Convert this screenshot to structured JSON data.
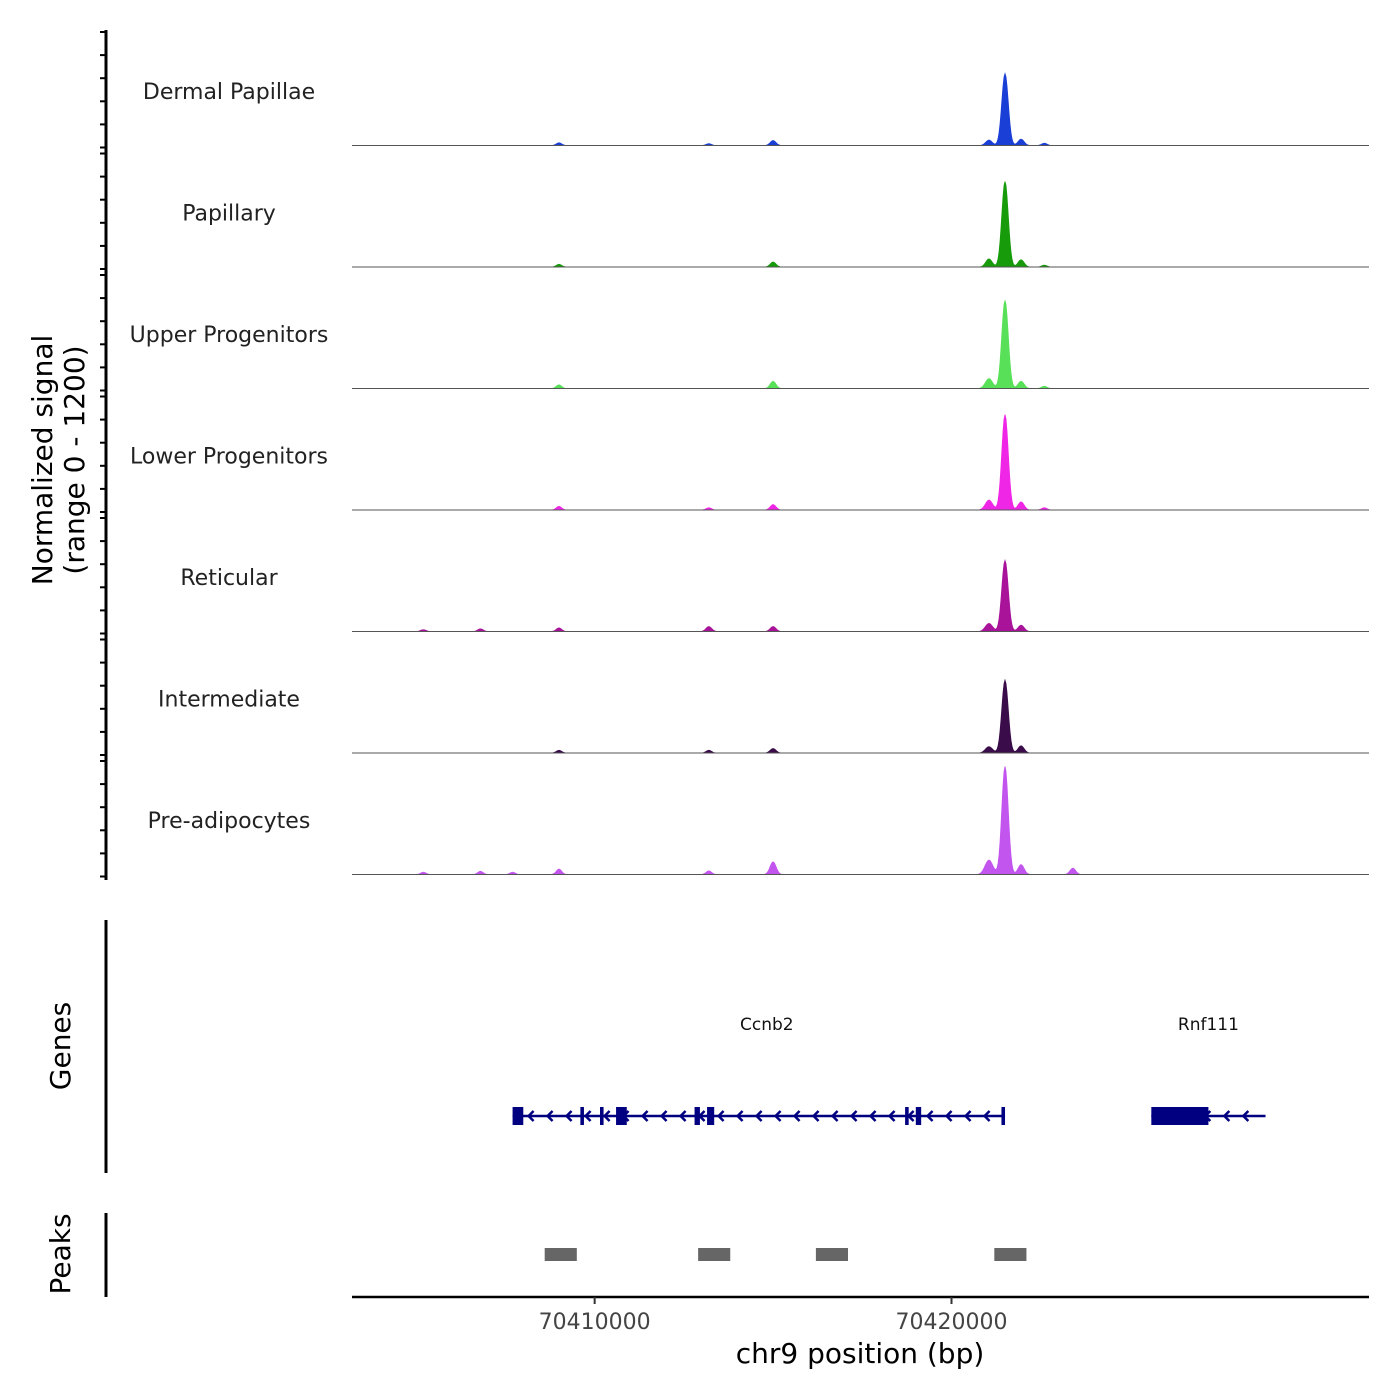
{
  "chart_data": {
    "type": "area",
    "title": "",
    "ylabel_line1": "Normalized signal",
    "ylabel_line2": "(range 0 - 1200)",
    "y_range": [
      0,
      1200
    ],
    "xlabel": "chr9 position (bp)",
    "x_range": [
      70403200,
      70431700
    ],
    "x_ticks": [
      70410000,
      70420000
    ],
    "x_tick_labels": [
      "70410000",
      "70420000"
    ],
    "tracks": [
      {
        "name": "Dermal Papillae",
        "color": "#1a3fd6",
        "peaks": [
          [
            70421500,
            800,
            180
          ],
          [
            70421050,
            60,
            180
          ],
          [
            70421950,
            70,
            170
          ],
          [
            70415000,
            55,
            160
          ],
          [
            70409000,
            30,
            150
          ],
          [
            70413200,
            20,
            150
          ],
          [
            70422600,
            25,
            150
          ]
        ]
      },
      {
        "name": "Papillary",
        "color": "#179b0b",
        "peaks": [
          [
            70421500,
            950,
            180
          ],
          [
            70421050,
            90,
            180
          ],
          [
            70421950,
            80,
            170
          ],
          [
            70415000,
            55,
            160
          ],
          [
            70409000,
            30,
            150
          ],
          [
            70422600,
            20,
            150
          ]
        ]
      },
      {
        "name": "Upper Progenitors",
        "color": "#59e059",
        "peaks": [
          [
            70421500,
            980,
            180
          ],
          [
            70421050,
            110,
            200
          ],
          [
            70421950,
            80,
            170
          ],
          [
            70415000,
            80,
            160
          ],
          [
            70409000,
            40,
            150
          ],
          [
            70422600,
            25,
            150
          ]
        ]
      },
      {
        "name": "Lower Progenitors",
        "color": "#f026e6",
        "peaks": [
          [
            70421500,
            1060,
            180
          ],
          [
            70421050,
            110,
            200
          ],
          [
            70421950,
            90,
            170
          ],
          [
            70415000,
            60,
            160
          ],
          [
            70409000,
            40,
            150
          ],
          [
            70413200,
            25,
            150
          ],
          [
            70422600,
            25,
            150
          ]
        ]
      },
      {
        "name": "Reticular",
        "color": "#a8139a",
        "peaks": [
          [
            70421500,
            790,
            180
          ],
          [
            70421050,
            90,
            200
          ],
          [
            70421950,
            70,
            170
          ],
          [
            70415000,
            55,
            160
          ],
          [
            70409000,
            40,
            150
          ],
          [
            70413200,
            55,
            160
          ],
          [
            70406800,
            30,
            150
          ],
          [
            70405200,
            20,
            150
          ]
        ]
      },
      {
        "name": "Intermediate",
        "color": "#3a0d4a",
        "peaks": [
          [
            70421500,
            810,
            180
          ],
          [
            70421050,
            70,
            200
          ],
          [
            70421950,
            80,
            170
          ],
          [
            70415000,
            50,
            160
          ],
          [
            70409000,
            30,
            150
          ],
          [
            70413200,
            30,
            150
          ]
        ]
      },
      {
        "name": "Pre-adipocytes",
        "color": "#c355ef",
        "peaks": [
          [
            70421500,
            1200,
            180
          ],
          [
            70421050,
            160,
            220
          ],
          [
            70421950,
            110,
            170
          ],
          [
            70415000,
            140,
            170
          ],
          [
            70409000,
            60,
            150
          ],
          [
            70413200,
            40,
            150
          ],
          [
            70423400,
            70,
            160
          ],
          [
            70406800,
            35,
            150
          ],
          [
            70405200,
            25,
            150
          ],
          [
            70407700,
            25,
            150
          ]
        ]
      }
    ],
    "genes": [
      {
        "name": "Ccnb2",
        "start": 70407700,
        "end": 70421500,
        "strand": "-",
        "color": "#000080",
        "exons": [
          [
            70407700,
            70408000
          ],
          [
            70409600,
            70409700
          ],
          [
            70410150,
            70410250
          ],
          [
            70410600,
            70410900
          ],
          [
            70412800,
            70412950
          ],
          [
            70413150,
            70413350
          ],
          [
            70418700,
            70418800
          ],
          [
            70419000,
            70419150
          ],
          [
            70421400,
            70421500
          ]
        ]
      },
      {
        "name": "Rnf111",
        "start": 70425600,
        "end": 70428800,
        "strand": "-",
        "color": "#000080",
        "exons": [
          [
            70425600,
            70427200
          ]
        ]
      }
    ],
    "gene_axis_title": "Genes",
    "peaks_axis_title": "Peaks",
    "peak_regions": [
      [
        70408600,
        70409500
      ],
      [
        70412900,
        70413800
      ],
      [
        70416200,
        70417100
      ],
      [
        70421200,
        70422100
      ]
    ],
    "peak_region_color": "#666666"
  }
}
